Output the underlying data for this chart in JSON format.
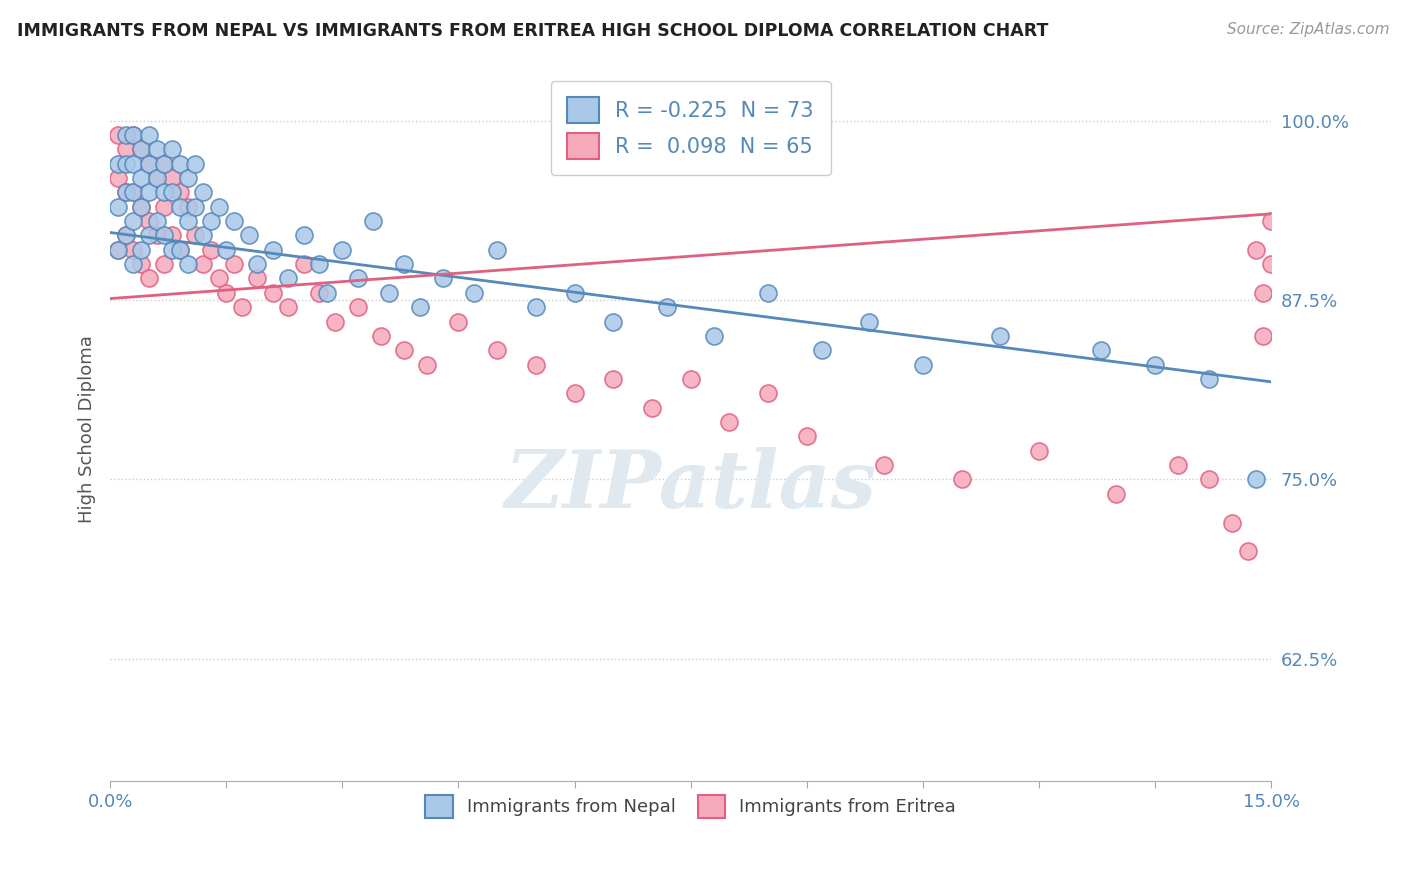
{
  "title": "IMMIGRANTS FROM NEPAL VS IMMIGRANTS FROM ERITREA HIGH SCHOOL DIPLOMA CORRELATION CHART",
  "source": "Source: ZipAtlas.com",
  "ylabel": "High School Diploma",
  "xlim": [
    0.0,
    0.15
  ],
  "ylim": [
    0.54,
    1.03
  ],
  "yticks": [
    0.625,
    0.75,
    0.875,
    1.0
  ],
  "ytick_labels": [
    "62.5%",
    "75.0%",
    "87.5%",
    "100.0%"
  ],
  "xticks": [
    0.0,
    0.015,
    0.03,
    0.045,
    0.06,
    0.075,
    0.09,
    0.105,
    0.12,
    0.135,
    0.15
  ],
  "xtick_labels": [
    "0.0%",
    "",
    "",
    "",
    "",
    "",
    "",
    "",
    "",
    "",
    "15.0%"
  ],
  "nepal_color": "#aac8e8",
  "eritrea_color": "#f5aabb",
  "nepal_edge_color": "#5588bb",
  "eritrea_edge_color": "#e06080",
  "nepal_R": -0.225,
  "nepal_N": 73,
  "eritrea_R": 0.098,
  "eritrea_N": 65,
  "nepal_line_color": "#5588bb",
  "eritrea_line_color": "#e06080",
  "watermark": "ZIPatlas",
  "nepal_trend_x0": 0.0,
  "nepal_trend_y0": 0.922,
  "nepal_trend_x1": 0.15,
  "nepal_trend_y1": 0.818,
  "eritrea_trend_x0": 0.0,
  "eritrea_trend_y0": 0.876,
  "eritrea_trend_x1": 0.15,
  "eritrea_trend_y1": 0.935,
  "nepal_scatter_x": [
    0.001,
    0.001,
    0.001,
    0.002,
    0.002,
    0.002,
    0.002,
    0.003,
    0.003,
    0.003,
    0.003,
    0.003,
    0.004,
    0.004,
    0.004,
    0.004,
    0.005,
    0.005,
    0.005,
    0.005,
    0.006,
    0.006,
    0.006,
    0.007,
    0.007,
    0.007,
    0.008,
    0.008,
    0.008,
    0.009,
    0.009,
    0.009,
    0.01,
    0.01,
    0.01,
    0.011,
    0.011,
    0.012,
    0.012,
    0.013,
    0.014,
    0.015,
    0.016,
    0.018,
    0.019,
    0.021,
    0.023,
    0.025,
    0.027,
    0.028,
    0.03,
    0.032,
    0.034,
    0.036,
    0.038,
    0.04,
    0.043,
    0.047,
    0.05,
    0.055,
    0.06,
    0.065,
    0.072,
    0.078,
    0.085,
    0.092,
    0.098,
    0.105,
    0.115,
    0.128,
    0.135,
    0.142,
    0.148
  ],
  "nepal_scatter_y": [
    0.97,
    0.94,
    0.91,
    0.99,
    0.97,
    0.95,
    0.92,
    0.99,
    0.97,
    0.95,
    0.93,
    0.9,
    0.98,
    0.96,
    0.94,
    0.91,
    0.99,
    0.97,
    0.95,
    0.92,
    0.98,
    0.96,
    0.93,
    0.97,
    0.95,
    0.92,
    0.98,
    0.95,
    0.91,
    0.97,
    0.94,
    0.91,
    0.96,
    0.93,
    0.9,
    0.97,
    0.94,
    0.95,
    0.92,
    0.93,
    0.94,
    0.91,
    0.93,
    0.92,
    0.9,
    0.91,
    0.89,
    0.92,
    0.9,
    0.88,
    0.91,
    0.89,
    0.93,
    0.88,
    0.9,
    0.87,
    0.89,
    0.88,
    0.91,
    0.87,
    0.88,
    0.86,
    0.87,
    0.85,
    0.88,
    0.84,
    0.86,
    0.83,
    0.85,
    0.84,
    0.83,
    0.82,
    0.75
  ],
  "eritrea_scatter_x": [
    0.001,
    0.001,
    0.001,
    0.002,
    0.002,
    0.002,
    0.003,
    0.003,
    0.003,
    0.004,
    0.004,
    0.004,
    0.005,
    0.005,
    0.005,
    0.006,
    0.006,
    0.007,
    0.007,
    0.007,
    0.008,
    0.008,
    0.009,
    0.009,
    0.01,
    0.011,
    0.012,
    0.013,
    0.014,
    0.015,
    0.016,
    0.017,
    0.019,
    0.021,
    0.023,
    0.025,
    0.027,
    0.029,
    0.032,
    0.035,
    0.038,
    0.041,
    0.045,
    0.05,
    0.055,
    0.06,
    0.065,
    0.07,
    0.075,
    0.08,
    0.085,
    0.09,
    0.1,
    0.11,
    0.12,
    0.13,
    0.138,
    0.142,
    0.145,
    0.147,
    0.148,
    0.149,
    0.149,
    0.15,
    0.15
  ],
  "eritrea_scatter_y": [
    0.99,
    0.96,
    0.91,
    0.98,
    0.95,
    0.92,
    0.99,
    0.95,
    0.91,
    0.98,
    0.94,
    0.9,
    0.97,
    0.93,
    0.89,
    0.96,
    0.92,
    0.97,
    0.94,
    0.9,
    0.96,
    0.92,
    0.95,
    0.91,
    0.94,
    0.92,
    0.9,
    0.91,
    0.89,
    0.88,
    0.9,
    0.87,
    0.89,
    0.88,
    0.87,
    0.9,
    0.88,
    0.86,
    0.87,
    0.85,
    0.84,
    0.83,
    0.86,
    0.84,
    0.83,
    0.81,
    0.82,
    0.8,
    0.82,
    0.79,
    0.81,
    0.78,
    0.76,
    0.75,
    0.77,
    0.74,
    0.76,
    0.75,
    0.72,
    0.7,
    0.91,
    0.88,
    0.85,
    0.93,
    0.9
  ]
}
